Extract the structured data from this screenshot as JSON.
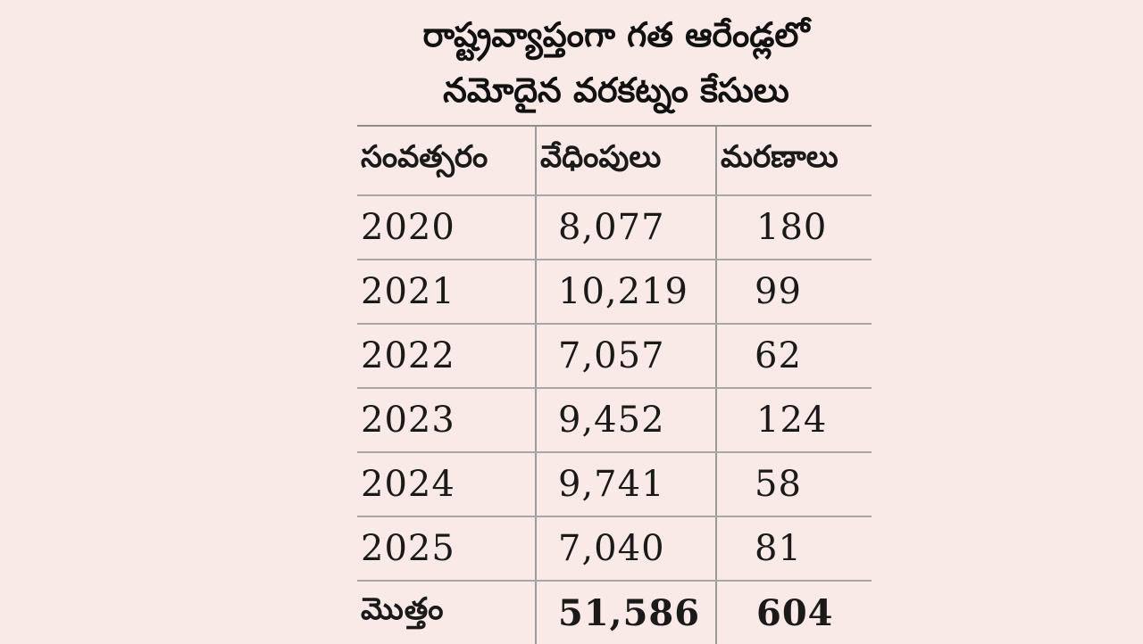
{
  "title": {
    "line1": "రాష్ట్రవ్యాప్తంగా గత ఆరేండ్లలో",
    "line2": "నమోదైన వరకట్నం కేసులు"
  },
  "table": {
    "headers": [
      "సంవత్సరం",
      "వేధింపులు",
      "మరణాలు"
    ],
    "rows": [
      {
        "year": "2020",
        "harassment": "8,077",
        "deaths": "180"
      },
      {
        "year": "2021",
        "harassment": "10,219",
        "deaths": "99"
      },
      {
        "year": "2022",
        "harassment": "7,057",
        "deaths": "62"
      },
      {
        "year": "2023",
        "harassment": "9,452",
        "deaths": "124"
      },
      {
        "year": "2024",
        "harassment": "9,741",
        "deaths": "58"
      },
      {
        "year": "2025",
        "harassment": "7,040",
        "deaths": "81"
      }
    ],
    "total": {
      "label": "మొత్తం",
      "harassment": "51,586",
      "deaths": "604"
    }
  }
}
